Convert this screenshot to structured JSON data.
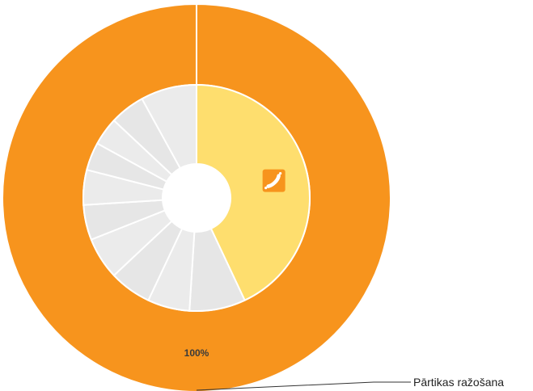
{
  "chart_data": {
    "type": "pie",
    "outer_ring": {
      "label": "Pārtikas ražošana",
      "percent_label": "100%",
      "value": 100,
      "color": "#f7941d"
    },
    "inner_ring": {
      "slices": [
        {
          "value": 43,
          "color": "#fede6e",
          "icon": "sausage-icon",
          "icon_color": "#f7941d",
          "highlighted": true
        },
        {
          "value": 8,
          "color": "#e6e6e6"
        },
        {
          "value": 6,
          "color": "#ebebeb"
        },
        {
          "value": 6,
          "color": "#e6e6e6"
        },
        {
          "value": 6,
          "color": "#ebebeb"
        },
        {
          "value": 5,
          "color": "#e6e6e6"
        },
        {
          "value": 5,
          "color": "#ebebeb"
        },
        {
          "value": 4,
          "color": "#e6e6e6"
        },
        {
          "value": 4,
          "color": "#ebebeb"
        },
        {
          "value": 5,
          "color": "#e6e6e6"
        },
        {
          "value": 8,
          "color": "#ebebeb"
        }
      ]
    }
  }
}
